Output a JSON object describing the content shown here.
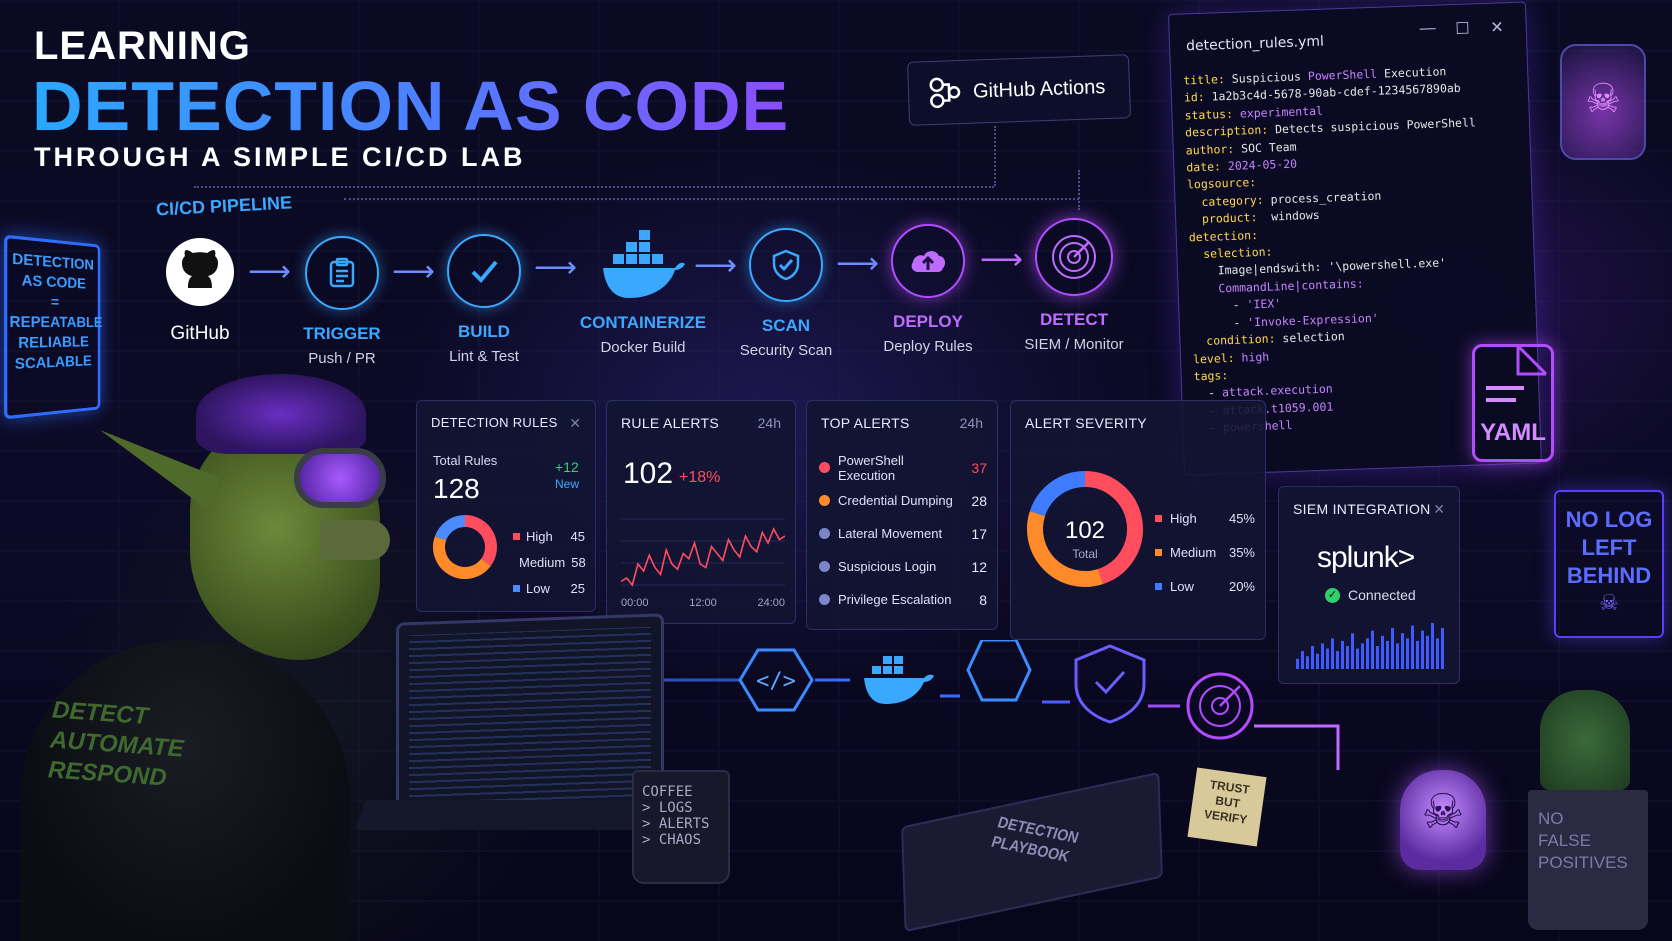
{
  "title": {
    "line1": "LEARNING",
    "line2": "DETECTION AS CODE",
    "subtitle": "THROUGH A SIMPLE CI/CD LAB"
  },
  "pipeline": {
    "label": "CI/CD PIPELINE",
    "github": "GitHub",
    "actions": "GitHub Actions",
    "stages": [
      {
        "name": "TRIGGER",
        "sub": "Push / PR",
        "color": "#3aa8ff"
      },
      {
        "name": "BUILD",
        "sub": "Lint & Test",
        "color": "#3aa8ff"
      },
      {
        "name": "CONTAINERIZE",
        "sub": "Docker Build",
        "color": "#3aa8ff"
      },
      {
        "name": "SCAN",
        "sub": "Security Scan",
        "color": "#3aa8ff"
      },
      {
        "name": "DEPLOY",
        "sub": "Deploy Rules",
        "color": "#b24dff"
      },
      {
        "name": "DETECT",
        "sub": "SIEM / Monitor",
        "color": "#b24dff"
      }
    ]
  },
  "yaml": {
    "filename": "detection_rules.yml",
    "badge": "YAML",
    "lines": [
      [
        {
          "t": "k",
          "v": "title: "
        },
        {
          "t": "v",
          "v": "Suspicious "
        },
        {
          "t": "s",
          "v": "PowerShell"
        },
        {
          "t": "v",
          "v": " Execution"
        }
      ],
      [
        {
          "t": "k",
          "v": "id: "
        },
        {
          "t": "v",
          "v": "1a2b3c4d-5678-90ab-cdef-1234567890ab"
        }
      ],
      [
        {
          "t": "k",
          "v": "status: "
        },
        {
          "t": "s",
          "v": "experimental"
        }
      ],
      [
        {
          "t": "k",
          "v": "description: "
        },
        {
          "t": "v",
          "v": "Detects suspicious PowerShell"
        }
      ],
      [
        {
          "t": "k",
          "v": "author: "
        },
        {
          "t": "v",
          "v": "SOC Team"
        }
      ],
      [
        {
          "t": "k",
          "v": "date: "
        },
        {
          "t": "s",
          "v": "2024-05-20"
        }
      ],
      [
        {
          "t": "k",
          "v": "logsource:"
        }
      ],
      [
        {
          "t": "k",
          "v": "  category: "
        },
        {
          "t": "v",
          "v": "process_creation"
        }
      ],
      [
        {
          "t": "k",
          "v": "  product: "
        },
        {
          "t": "v",
          "v": " windows"
        }
      ],
      [
        {
          "t": "k",
          "v": "detection:"
        }
      ],
      [
        {
          "t": "k",
          "v": "  selection:"
        }
      ],
      [
        {
          "t": "v",
          "v": "    Image|endswith: "
        },
        {
          "t": "v",
          "v": "'\\powershell.exe'"
        }
      ],
      [
        {
          "t": "s",
          "v": "    CommandLine|contains:"
        }
      ],
      [
        {
          "t": "v",
          "v": "      - "
        },
        {
          "t": "s",
          "v": "'IEX'"
        }
      ],
      [
        {
          "t": "v",
          "v": "      - "
        },
        {
          "t": "s",
          "v": "'Invoke-Expression'"
        }
      ],
      [
        {
          "t": "k",
          "v": "  condition: "
        },
        {
          "t": "v",
          "v": "selection"
        }
      ],
      [
        {
          "t": "k",
          "v": "level: "
        },
        {
          "t": "s",
          "v": "high"
        }
      ],
      [
        {
          "t": "k",
          "v": "tags:"
        }
      ],
      [
        {
          "t": "v",
          "v": "  - "
        },
        {
          "t": "s",
          "v": "attack.execution"
        }
      ],
      [
        {
          "t": "v",
          "v": "  - "
        },
        {
          "t": "s",
          "v": "attack.t1059.001"
        }
      ],
      [
        {
          "t": "v",
          "v": "  - "
        },
        {
          "t": "s",
          "v": "powershell"
        }
      ]
    ]
  },
  "rules": {
    "title": "DETECTION RULES",
    "total_label": "Total Rules",
    "total": "128",
    "delta": "+12",
    "delta_label": "New",
    "legend": [
      {
        "name": "High",
        "value": 45,
        "color": "#ff4d5e"
      },
      {
        "name": "Medium",
        "value": 58,
        "color": "#ff8a2a"
      },
      {
        "name": "Low",
        "value": 25,
        "color": "#4a8cff"
      }
    ]
  },
  "alerts": {
    "title": "RULE ALERTS",
    "range": "24h",
    "value": "102",
    "change": "+18%",
    "xticks": [
      "00:00",
      "12:00",
      "24:00"
    ],
    "series": [
      20,
      22,
      18,
      30,
      26,
      35,
      28,
      24,
      38,
      30,
      27,
      36,
      33,
      42,
      30,
      28,
      40,
      36,
      32,
      44,
      38,
      34,
      46,
      40,
      37,
      48,
      42,
      50,
      44,
      46
    ]
  },
  "top": {
    "title": "TOP ALERTS",
    "range": "24h",
    "items": [
      {
        "name": "PowerShell Execution",
        "count": "37",
        "color": "#ff4d5e"
      },
      {
        "name": "Credential Dumping",
        "count": "28",
        "color": "#ff8a2a"
      },
      {
        "name": "Lateral Movement",
        "count": "17",
        "color": "#7b86c9"
      },
      {
        "name": "Suspicious Login",
        "count": "12",
        "color": "#7b86c9"
      },
      {
        "name": "Privilege Escalation",
        "count": "8",
        "color": "#7b86c9"
      }
    ]
  },
  "severity": {
    "title": "ALERT SEVERITY",
    "total": "102",
    "total_label": "Total",
    "legend": [
      {
        "name": "High",
        "pct": "45%",
        "value": 45,
        "color": "#ff4d5e"
      },
      {
        "name": "Medium",
        "pct": "35%",
        "value": 35,
        "color": "#ff8a2a"
      },
      {
        "name": "Low",
        "pct": "20%",
        "value": 20,
        "color": "#3f7bff"
      }
    ]
  },
  "siem": {
    "title": "SIEM INTEGRATION",
    "brand": "splunk>",
    "status": "Connected",
    "bars": [
      8,
      14,
      10,
      18,
      12,
      20,
      16,
      24,
      14,
      22,
      18,
      28,
      16,
      20,
      24,
      30,
      18,
      26,
      22,
      32,
      20,
      28,
      24,
      34,
      22,
      30,
      26,
      36,
      24,
      32
    ]
  },
  "signs": {
    "left": [
      "DETECTION",
      "AS CODE",
      "=",
      "REPEATABLE",
      "RELIABLE",
      "SCALABLE"
    ],
    "right": [
      "NO LOG",
      "LEFT",
      "BEHIND"
    ],
    "hoodie": [
      "DETECT",
      "AUTOMATE",
      "RESPOND"
    ],
    "mug": [
      "COFFEE",
      "> LOGS",
      "> ALERTS",
      "> CHAOS"
    ],
    "note": [
      "TRUST",
      "BUT",
      "VERIFY"
    ],
    "book": [
      "DETECTION",
      "PLAYBOOK"
    ],
    "pot": [
      "NO",
      "FALSE",
      "POSITIVES"
    ]
  }
}
